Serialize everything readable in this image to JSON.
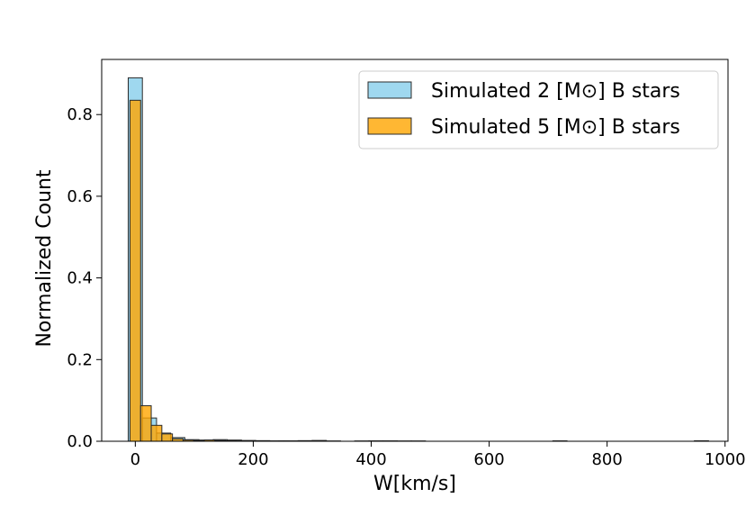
{
  "chart_data": {
    "type": "bar",
    "title": "",
    "xlabel": "W[km/s]",
    "ylabel": "Normalized Count",
    "xlim": [
      -57,
      1005
    ],
    "ylim": [
      0,
      0.935
    ],
    "xticks": [
      0,
      200,
      400,
      600,
      800,
      1000
    ],
    "yticks": [
      0.0,
      0.2,
      0.4,
      0.6,
      0.8
    ],
    "xtick_labels": [
      "0",
      "200",
      "400",
      "600",
      "800",
      "1000"
    ],
    "ytick_labels": [
      "0.0",
      "0.2",
      "0.4",
      "0.6",
      "0.8"
    ],
    "grid": false,
    "legend_position": "top-right",
    "series": [
      {
        "name": "Simulated 2 [M⊙] B stars",
        "color": "#87ceeb",
        "alpha": 0.8,
        "edge_color": "#2b2b2b",
        "bins": [
          {
            "x0": -12,
            "x1": 12,
            "value": 0.89
          },
          {
            "x0": 12,
            "x1": 36,
            "value": 0.057
          },
          {
            "x0": 36,
            "x1": 60,
            "value": 0.02
          },
          {
            "x0": 60,
            "x1": 84,
            "value": 0.009
          },
          {
            "x0": 84,
            "x1": 108,
            "value": 0.004
          },
          {
            "x0": 108,
            "x1": 132,
            "value": 0.003
          },
          {
            "x0": 132,
            "x1": 156,
            "value": 0.004
          },
          {
            "x0": 156,
            "x1": 180,
            "value": 0.003
          },
          {
            "x0": 180,
            "x1": 204,
            "value": 0.002
          },
          {
            "x0": 204,
            "x1": 228,
            "value": 0.0015
          },
          {
            "x0": 228,
            "x1": 252,
            "value": 0.001
          },
          {
            "x0": 252,
            "x1": 276,
            "value": 0.001
          },
          {
            "x0": 276,
            "x1": 300,
            "value": 0.0015
          },
          {
            "x0": 300,
            "x1": 324,
            "value": 0.002
          },
          {
            "x0": 324,
            "x1": 348,
            "value": 0.0008
          },
          {
            "x0": 372,
            "x1": 396,
            "value": 0.0008
          },
          {
            "x0": 396,
            "x1": 420,
            "value": 0.001
          },
          {
            "x0": 420,
            "x1": 444,
            "value": 0.001
          },
          {
            "x0": 444,
            "x1": 468,
            "value": 0.0008
          },
          {
            "x0": 468,
            "x1": 492,
            "value": 0.0008
          },
          {
            "x0": 708,
            "x1": 732,
            "value": 0.001
          },
          {
            "x0": 948,
            "x1": 972,
            "value": 0.0012
          }
        ]
      },
      {
        "name": "Simulated 5 [M⊙] B stars",
        "color": "#ffa500",
        "alpha": 0.8,
        "edge_color": "#2b2b2b",
        "bins": [
          {
            "x0": -9,
            "x1": 9,
            "value": 0.835
          },
          {
            "x0": 9,
            "x1": 27,
            "value": 0.087
          },
          {
            "x0": 27,
            "x1": 45,
            "value": 0.039
          },
          {
            "x0": 45,
            "x1": 63,
            "value": 0.018
          },
          {
            "x0": 63,
            "x1": 81,
            "value": 0.006
          },
          {
            "x0": 81,
            "x1": 99,
            "value": 0.003
          },
          {
            "x0": 99,
            "x1": 117,
            "value": 0.002
          },
          {
            "x0": 117,
            "x1": 135,
            "value": 0.003
          },
          {
            "x0": 135,
            "x1": 153,
            "value": 0.002
          },
          {
            "x0": 153,
            "x1": 171,
            "value": 0.0015
          },
          {
            "x0": 171,
            "x1": 189,
            "value": 0.001
          },
          {
            "x0": 189,
            "x1": 207,
            "value": 0.001
          },
          {
            "x0": 207,
            "x1": 225,
            "value": 0.0008
          },
          {
            "x0": 243,
            "x1": 261,
            "value": 0.0008
          },
          {
            "x0": 279,
            "x1": 297,
            "value": 0.0008
          }
        ]
      }
    ]
  }
}
